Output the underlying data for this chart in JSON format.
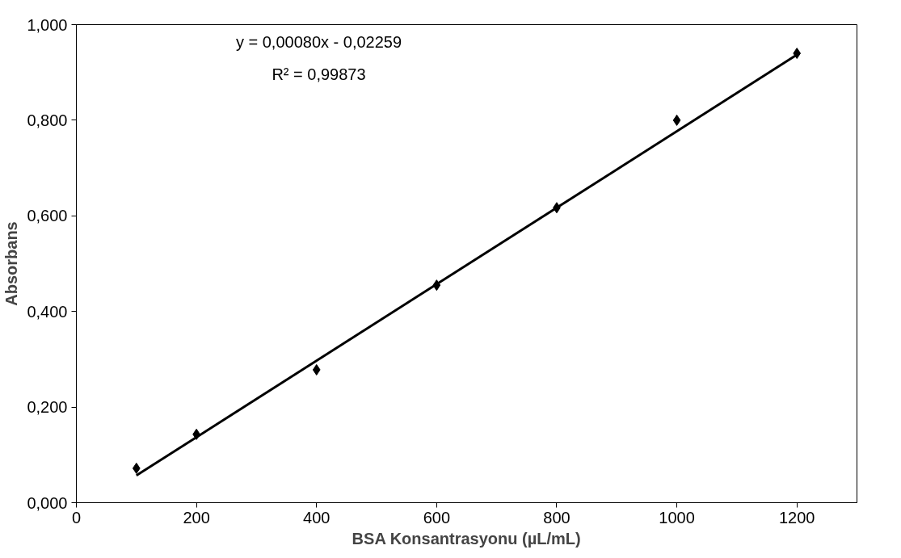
{
  "chart_data": {
    "type": "scatter",
    "xlabel": "BSA Konsantrasyonu (µL/mL)",
    "ylabel": "Absorbans",
    "x": [
      100,
      200,
      400,
      600,
      800,
      1000,
      1200
    ],
    "series": [
      {
        "color": "#000000",
        "marker": "diamond",
        "values": [
          0.072,
          0.143,
          0.278,
          0.455,
          0.617,
          0.8,
          0.94
        ]
      },
      {
        "type": "line",
        "color": "#000000",
        "marker": "none",
        "line_style": "solid",
        "x": [
          100,
          1200
        ],
        "values": [
          0.057,
          0.937
        ]
      }
    ],
    "xlim": [
      0,
      1300
    ],
    "xticks": [
      0,
      200,
      400,
      600,
      800,
      1000,
      1200
    ],
    "ylim": [
      0,
      1
    ],
    "yticks": [
      {
        "value": 0,
        "label": "0,000"
      },
      {
        "value": 0.2,
        "label": "0,200"
      },
      {
        "value": 0.4,
        "label": "0,400"
      },
      {
        "value": 0.6,
        "label": "0,600"
      },
      {
        "value": 0.8,
        "label": "0,800"
      },
      {
        "value": 1,
        "label": "1,000"
      }
    ],
    "annotations": [
      "y = 0,00080x - 0,02259",
      "R² = 0,99873"
    ],
    "grid": false
  }
}
